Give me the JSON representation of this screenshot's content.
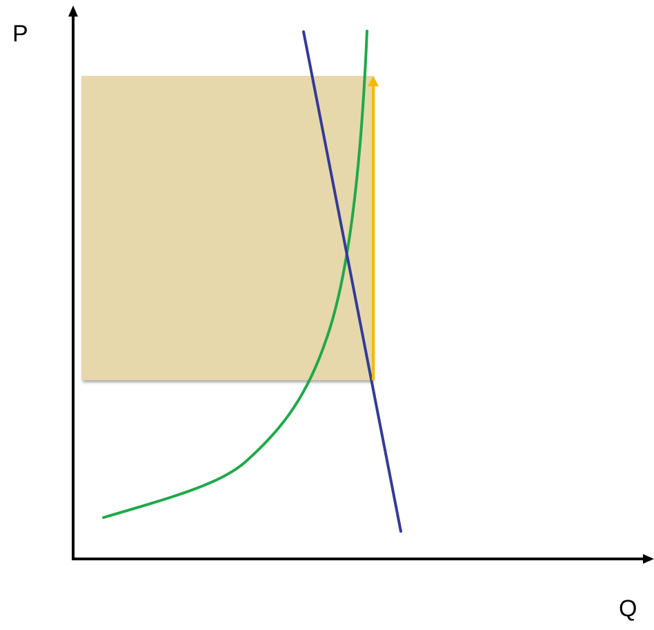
{
  "axes": {
    "y_label": "P",
    "x_label": "Q"
  },
  "colors": {
    "axis": "#000000",
    "shaded_area": "#e6d8ab",
    "demand_curve": "#343a98",
    "supply_curve": "#1fa84a",
    "price_gap_arrow": "#f6b800",
    "upper_price_line": "#f0b400",
    "lower_price_line": "#e8181b"
  }
}
